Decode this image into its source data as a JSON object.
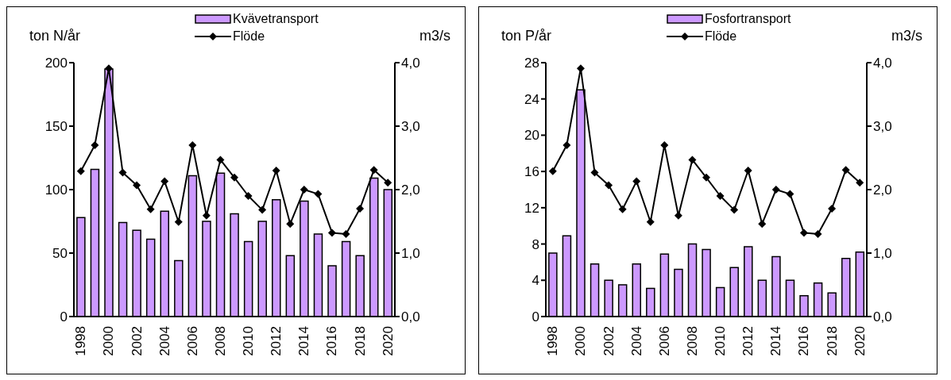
{
  "chart_data": [
    {
      "type": "bar",
      "ylabel": "ton N/år",
      "y2label": "m3/s",
      "categories": [
        "1998",
        null,
        "2000",
        null,
        "2002",
        null,
        "2004",
        null,
        "2006",
        null,
        "2008",
        null,
        "2010",
        null,
        "2012",
        null,
        "2014",
        null,
        "2016",
        null,
        "2018",
        null,
        "2020"
      ],
      "series": [
        {
          "name": "Kvävetransport",
          "color": "#cc99ff",
          "values": [
            78,
            116,
            195,
            74,
            68,
            61,
            83,
            44,
            111,
            75,
            113,
            81,
            59,
            75,
            92,
            48,
            91,
            65,
            40,
            59,
            48,
            109,
            100
          ]
        },
        {
          "name": "Flöde",
          "type": "line",
          "axis": "y2",
          "color": "#000000",
          "values": [
            2.29,
            2.7,
            3.91,
            2.27,
            2.07,
            1.69,
            2.13,
            1.49,
            2.7,
            1.59,
            2.47,
            2.19,
            1.9,
            1.68,
            2.3,
            1.46,
            2.0,
            1.93,
            1.32,
            1.3,
            1.7,
            2.31,
            2.11
          ]
        }
      ],
      "ylim": [
        0,
        200
      ],
      "yticks": [
        0,
        50,
        100,
        150,
        200
      ],
      "y2lim": [
        0,
        4
      ],
      "y2ticks": [
        {
          "value": 0,
          "label": "0,0"
        },
        {
          "value": 1,
          "label": "1,0"
        },
        {
          "value": 2,
          "label": "2,0"
        },
        {
          "value": 3,
          "label": "3,0"
        },
        {
          "value": 4,
          "label": "4,0"
        }
      ],
      "legend": "top",
      "marker": "diamond",
      "grid": false
    },
    {
      "type": "bar",
      "ylabel": "ton P/år",
      "y2label": "m3/s",
      "categories": [
        "1998",
        null,
        "2000",
        null,
        "2002",
        null,
        "2004",
        null,
        "2006",
        null,
        "2008",
        null,
        "2010",
        null,
        "2012",
        null,
        "2014",
        null,
        "2016",
        null,
        "2018",
        null,
        "2020"
      ],
      "series": [
        {
          "name": "Fosfortransport",
          "color": "#cc99ff",
          "values": [
            7.0,
            8.9,
            25.0,
            5.8,
            4.0,
            3.5,
            5.8,
            3.1,
            6.9,
            5.2,
            8.0,
            7.4,
            3.2,
            5.4,
            7.7,
            4.0,
            6.6,
            4.0,
            2.3,
            3.7,
            2.6,
            6.4,
            7.1
          ]
        },
        {
          "name": "Flöde",
          "type": "line",
          "axis": "y2",
          "color": "#000000",
          "values": [
            2.29,
            2.7,
            3.91,
            2.27,
            2.07,
            1.69,
            2.13,
            1.49,
            2.7,
            1.59,
            2.47,
            2.19,
            1.9,
            1.68,
            2.3,
            1.46,
            2.0,
            1.93,
            1.32,
            1.3,
            1.7,
            2.31,
            2.11
          ]
        }
      ],
      "ylim": [
        0,
        28
      ],
      "yticks": [
        0,
        4,
        8,
        12,
        16,
        20,
        24,
        28
      ],
      "y2lim": [
        0,
        4
      ],
      "y2ticks": [
        {
          "value": 0,
          "label": "0,0"
        },
        {
          "value": 1,
          "label": "1,0"
        },
        {
          "value": 2,
          "label": "2,0"
        },
        {
          "value": 3,
          "label": "3,0"
        },
        {
          "value": 4,
          "label": "4,0"
        }
      ],
      "legend": "top",
      "marker": "diamond",
      "grid": false
    }
  ]
}
